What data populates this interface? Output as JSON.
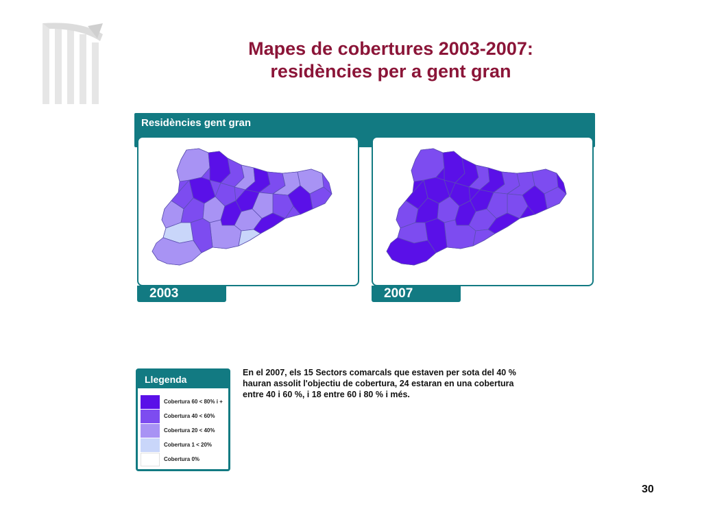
{
  "slide": {
    "title_line1": "Mapes de cobertures 2003-2007:",
    "title_line2": "residències per a gent gran",
    "page_number": "30"
  },
  "maps": {
    "header": "Residències gent gran",
    "year_2003": "2003",
    "year_2007": "2007"
  },
  "legend": {
    "title": "Llegenda",
    "items": [
      {
        "label": "Cobertura 60 < 80% i +",
        "color": "#5a10e8"
      },
      {
        "label": "Cobertura 40 < 60%",
        "color": "#7d4cf0"
      },
      {
        "label": "Cobertura 20 < 40%",
        "color": "#a893f4"
      },
      {
        "label": "Cobertura 1 < 20%",
        "color": "#c9d6fa"
      },
      {
        "label": "Cobertura 0%",
        "color": "#ffffff"
      }
    ]
  },
  "description": {
    "line1": "En el 2007, els 15 Sectors comarcals que estaven per sota del 40 %",
    "line2": "hauran assolit l'objectiu de cobertura, 24 estaran en una cobertura",
    "line3": "entre 40 i 60 %, i 18 entre 60 i 80 % i més."
  },
  "colors": {
    "title": "#8b1538",
    "teal": "#127a82"
  }
}
